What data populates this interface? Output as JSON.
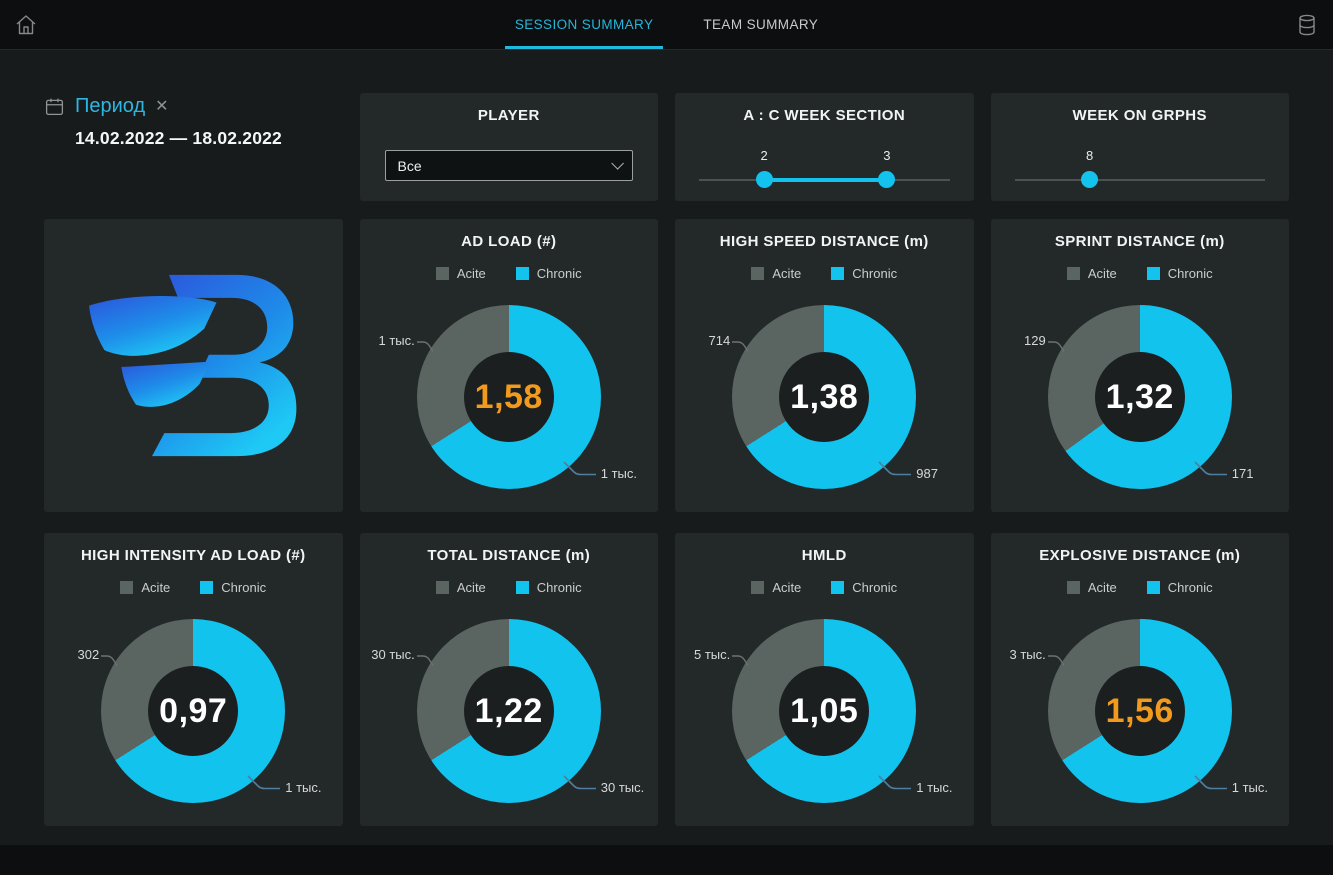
{
  "topbar": {
    "tabs": [
      {
        "label": "SESSION SUMMARY",
        "active": true
      },
      {
        "label": "TEAM SUMMARY",
        "active": false
      }
    ]
  },
  "filters": {
    "period": {
      "label": "Период",
      "clear_icon": "✕",
      "date_range": "14.02.2022 — 18.02.2022"
    },
    "player": {
      "title": "PLAYER",
      "selected": "Все"
    },
    "ac_week_section": {
      "title": "A : C WEEK SECTION",
      "handles": [
        {
          "label": "2",
          "pct": 26
        },
        {
          "label": "3",
          "pct": 75
        }
      ]
    },
    "week_on_graphs": {
      "title": "WEEK ON GRPHS",
      "handle": {
        "label": "8",
        "pct": 30
      }
    }
  },
  "colors": {
    "accent": "#1fb9e0",
    "chronic": "#12c3ee",
    "acute": "#5a6461",
    "warning": "#f29a1d",
    "value_normal": "#ffffff"
  },
  "chart_data": [
    {
      "type": "donut",
      "title": "AD LOAD (#)",
      "legend": [
        "Acite",
        "Chronic"
      ],
      "acute_label": "1 тыс.",
      "chronic_label": "1 тыс.",
      "center_value": "1,58",
      "center_warning": true,
      "chronic_fraction": 0.66
    },
    {
      "type": "donut",
      "title": "HIGH SPEED DISTANCE (m)",
      "legend": [
        "Acite",
        "Chronic"
      ],
      "acute_label": "714",
      "chronic_label": "987",
      "center_value": "1,38",
      "center_warning": false,
      "chronic_fraction": 0.66
    },
    {
      "type": "donut",
      "title": "SPRINT DISTANCE (m)",
      "legend": [
        "Acite",
        "Chronic"
      ],
      "acute_label": "129",
      "chronic_label": "171",
      "center_value": "1,32",
      "center_warning": false,
      "chronic_fraction": 0.65
    },
    {
      "type": "donut",
      "title": "HIGH INTENSITY AD LOAD (#)",
      "legend": [
        "Acite",
        "Chronic"
      ],
      "acute_label": "302",
      "chronic_label": "1 тыс.",
      "center_value": "0,97",
      "center_warning": false,
      "chronic_fraction": 0.66
    },
    {
      "type": "donut",
      "title": "TOTAL DISTANCE (m)",
      "legend": [
        "Acite",
        "Chronic"
      ],
      "acute_label": "30 тыс.",
      "chronic_label": "30 тыс.",
      "center_value": "1,22",
      "center_warning": false,
      "chronic_fraction": 0.66
    },
    {
      "type": "donut",
      "title": "HMLD",
      "legend": [
        "Acite",
        "Chronic"
      ],
      "acute_label": "5 тыс.",
      "chronic_label": "1 тыс.",
      "center_value": "1,05",
      "center_warning": false,
      "chronic_fraction": 0.66
    },
    {
      "type": "donut",
      "title": "EXPLOSIVE DISTANCE (m)",
      "legend": [
        "Acite",
        "Chronic"
      ],
      "acute_label": "3 тыс.",
      "chronic_label": "1 тыс.",
      "center_value": "1,56",
      "center_warning": true,
      "chronic_fraction": 0.66
    }
  ]
}
